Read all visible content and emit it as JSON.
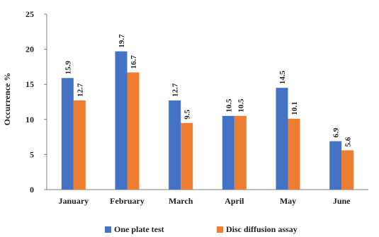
{
  "chart_data": {
    "type": "bar",
    "title": "",
    "xlabel": "",
    "ylabel": "Occurrence %",
    "ylim": [
      0,
      25
    ],
    "yticks": [
      "0",
      "5",
      "10",
      "15",
      "20",
      "25"
    ],
    "categories": [
      "January",
      "February",
      "March",
      "April",
      "May",
      "June"
    ],
    "series": [
      {
        "name": "One plate test",
        "color": "#4472C4",
        "values": [
          15.9,
          19.7,
          12.7,
          10.5,
          14.5,
          6.9
        ],
        "labels": [
          "15.9",
          "19.7",
          "12.7",
          "10.5",
          "14.5",
          "6.9"
        ]
      },
      {
        "name": "Disc diffusion assay",
        "color": "#ED7D31",
        "values": [
          12.7,
          16.7,
          9.5,
          10.5,
          10.1,
          5.6
        ],
        "labels": [
          "12.7",
          "16.7",
          "9.5",
          "10.5",
          "10.1",
          "5.6"
        ]
      }
    ],
    "legend_position": "bottom",
    "grid": false
  }
}
